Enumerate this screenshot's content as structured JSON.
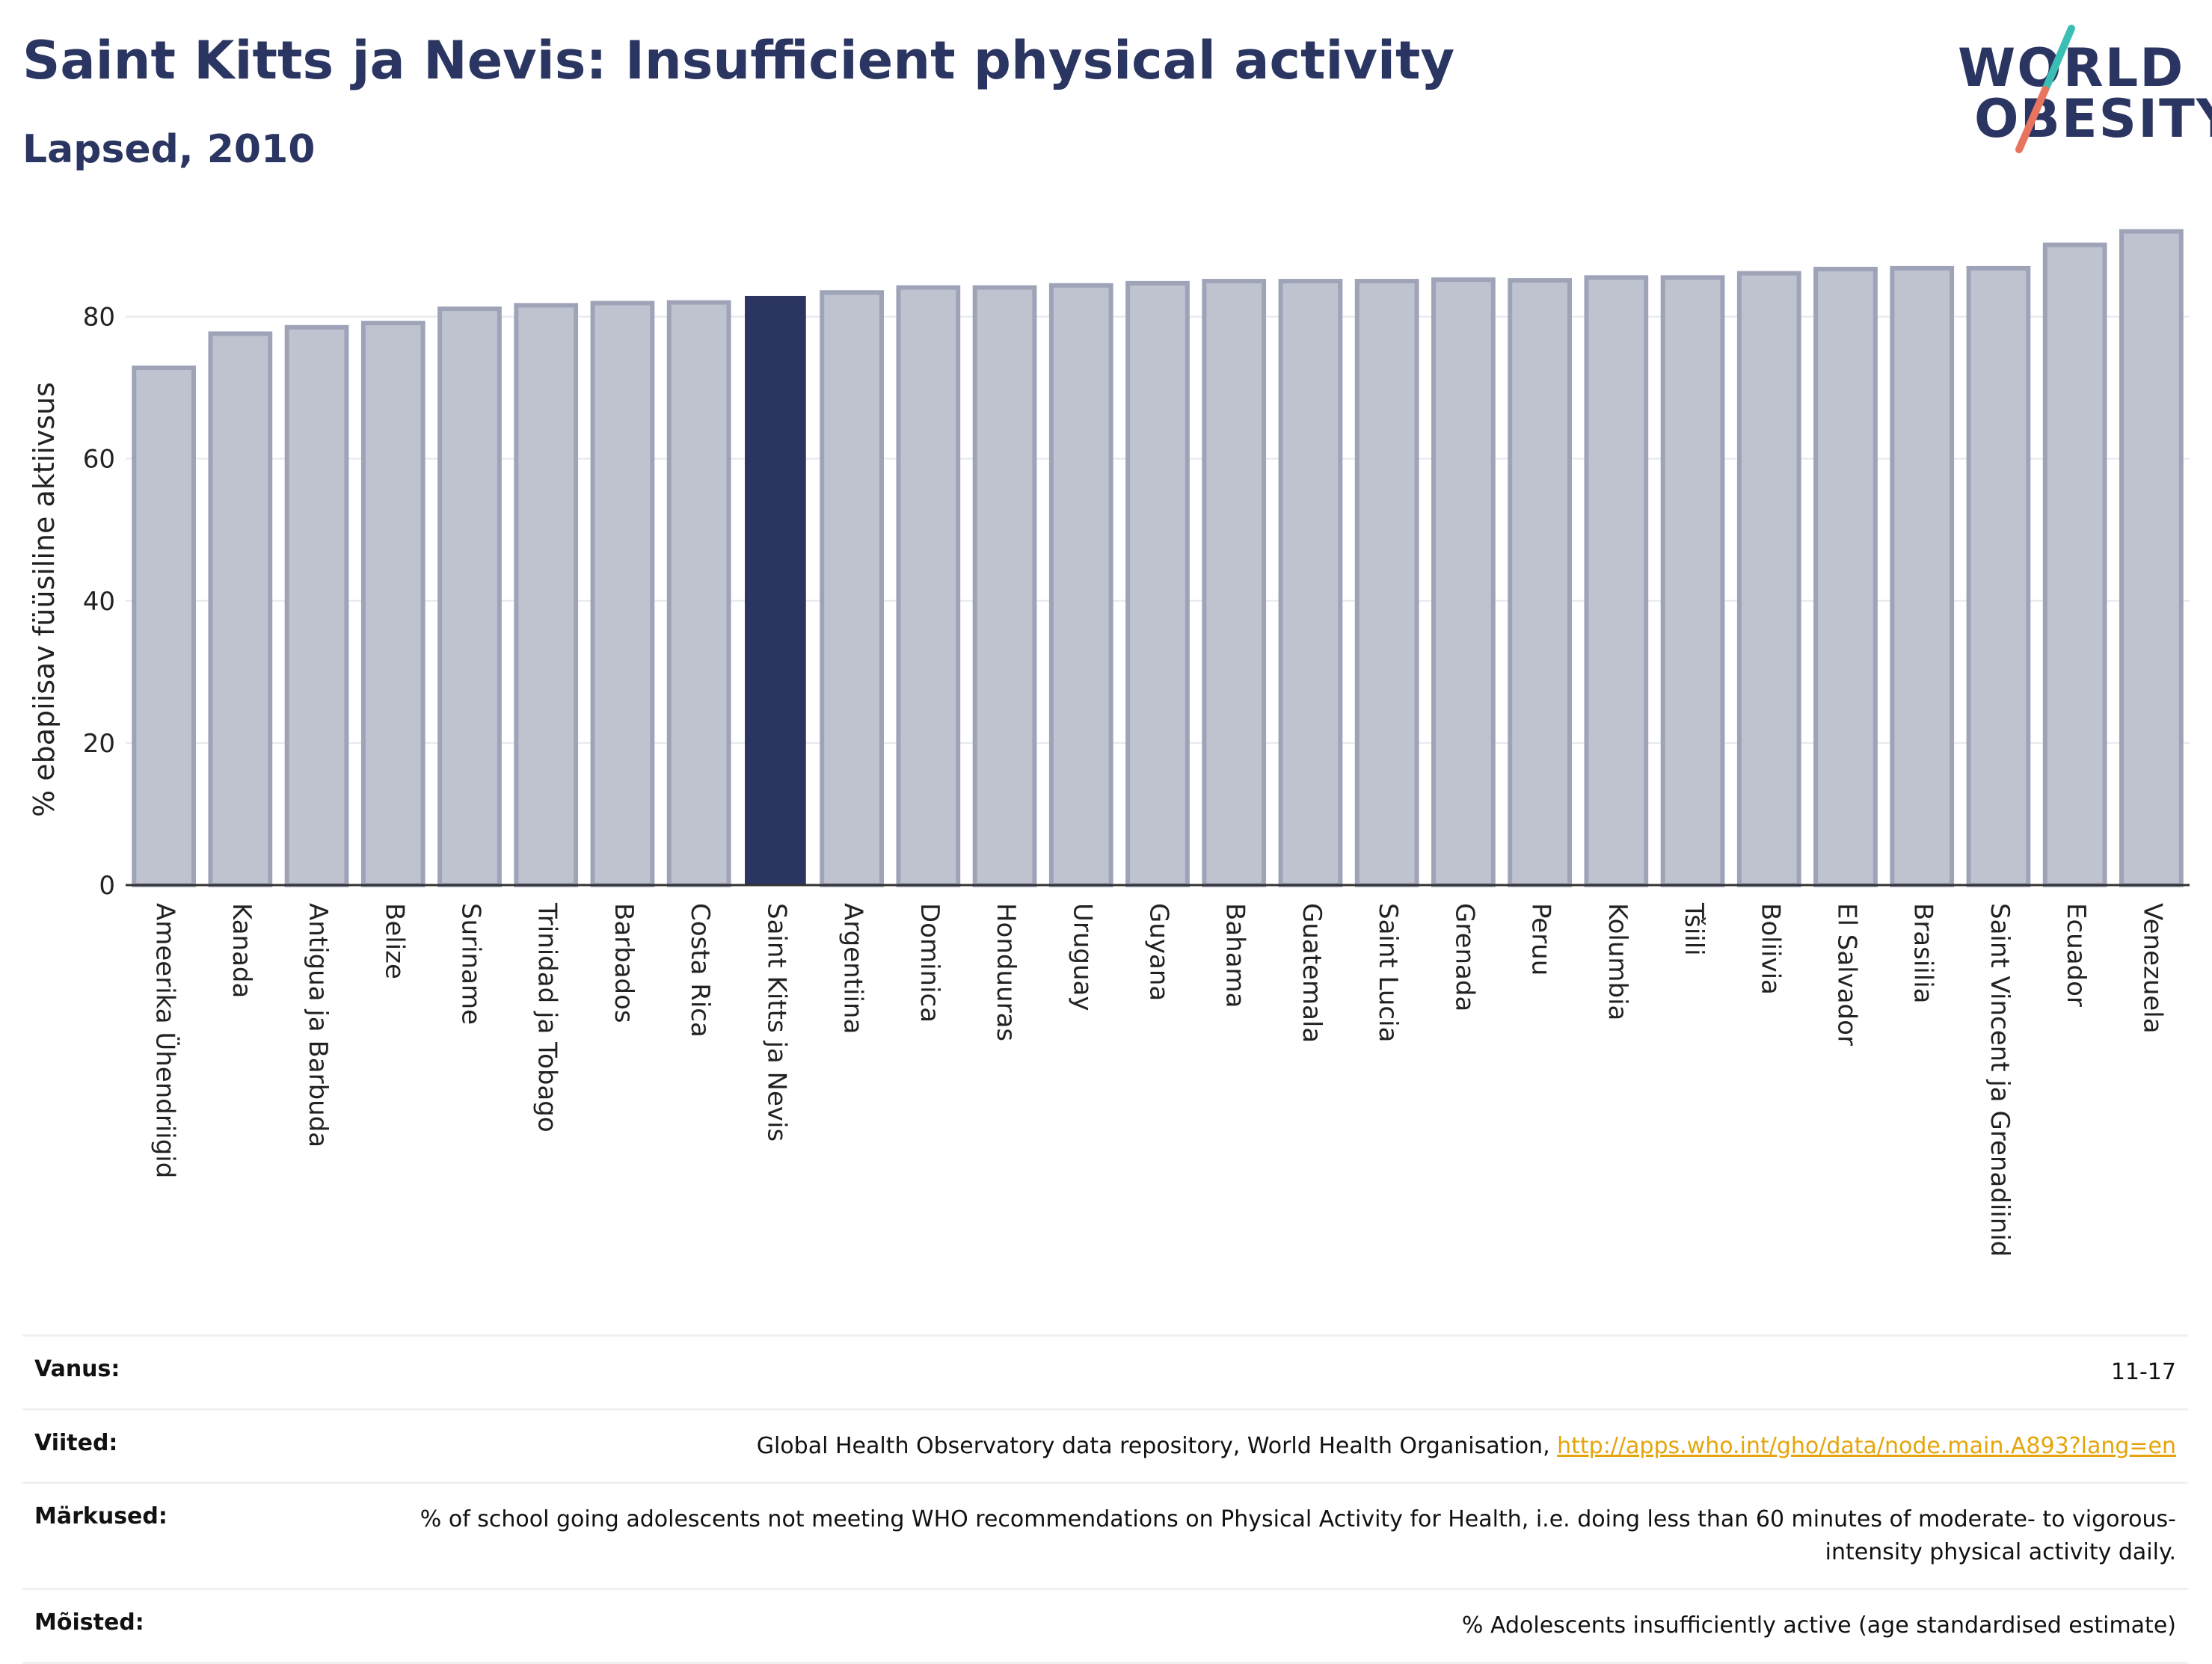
{
  "header": {
    "title": "Saint Kitts ja Nevis: Insufficient physical activity",
    "subtitle": "Lapsed, 2010"
  },
  "logo": {
    "line1": "WORLD",
    "line2": "OBESITY"
  },
  "colors": {
    "highlight": "#2b3561",
    "bar_fill": "#bfc3d0",
    "bar_stroke": "#9ea3b8",
    "link": "#e5a50a"
  },
  "chart_data": {
    "type": "bar",
    "ylabel": "% ebapiisav füüsiline aktiivsus",
    "ylim": [
      0,
      93
    ],
    "yticks": [
      0,
      20,
      40,
      60,
      80
    ],
    "grid": true,
    "highlight": "Saint Kitts ja Nevis",
    "categories": [
      "Ameerika Ühendriigid",
      "Kanada",
      "Antigua ja Barbuda",
      "Belize",
      "Suriname",
      "Trinidad ja Tobago",
      "Barbados",
      "Costa Rica",
      "Saint Kitts ja Nevis",
      "Argentiina",
      "Dominica",
      "Honduuras",
      "Uruguay",
      "Guyana",
      "Bahama",
      "Guatemala",
      "Saint Lucia",
      "Grenada",
      "Peruu",
      "Kolumbia",
      "Tšiili",
      "Boliivia",
      "El Salvador",
      "Brasiilia",
      "Saint Vincent ja Grenadiinid",
      "Ecuador",
      "Venezuela"
    ],
    "values": [
      72.8,
      77.6,
      78.5,
      79.1,
      81.1,
      81.6,
      81.9,
      82.0,
      82.8,
      83.4,
      84.1,
      84.1,
      84.4,
      84.7,
      85.0,
      85.0,
      85.0,
      85.2,
      85.1,
      85.5,
      85.5,
      86.1,
      86.7,
      86.8,
      86.8,
      90.1,
      92.0
    ]
  },
  "meta": [
    {
      "key": "Vanus:",
      "value": "11-17"
    },
    {
      "key": "Viited:",
      "value": "Global Health Observatory data repository, World Health Organisation, ",
      "link": "http://apps.who.int/gho/data/node.main.A893?lang=en"
    },
    {
      "key": "Märkused:",
      "value": "% of school going adolescents not meeting WHO recommendations on Physical Activity for Health, i.e. doing less than 60 minutes of moderate- to vigorous-intensity physical activity daily."
    },
    {
      "key": "Mõisted:",
      "value": "% Adolescents insufficiently active (age standardised estimate)"
    }
  ]
}
